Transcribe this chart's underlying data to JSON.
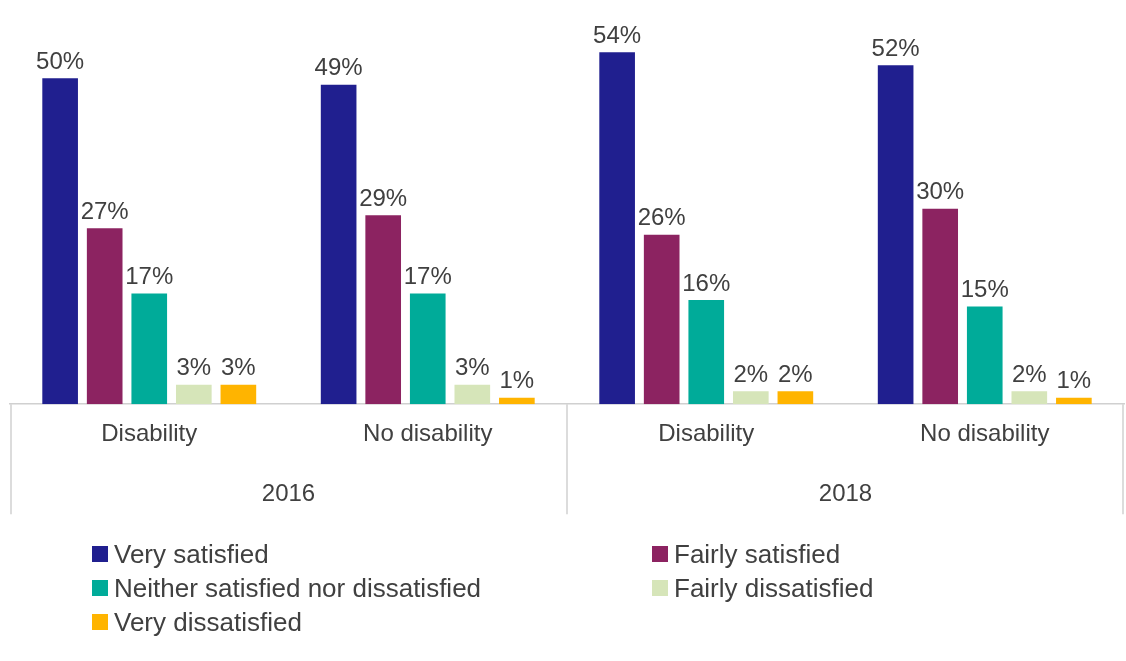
{
  "chart_data": {
    "type": "bar",
    "categories": [
      "Disability",
      "No disability",
      "Disability",
      "No disability"
    ],
    "annotations": [
      "2016",
      "2018"
    ],
    "series": [
      {
        "name": "Very satisfied",
        "color": "#201f8f",
        "values": [
          50,
          49,
          54,
          52
        ],
        "value_labels": [
          "50%",
          "49%",
          "54%",
          "52%"
        ]
      },
      {
        "name": "Fairly satisfied",
        "color": "#8c2361",
        "values": [
          27,
          29,
          26,
          30
        ],
        "value_labels": [
          "27%",
          "29%",
          "26%",
          "30%"
        ]
      },
      {
        "name": "Neither satisfied nor dissatisfied",
        "color": "#00ab99",
        "values": [
          17,
          17,
          16,
          15
        ],
        "value_labels": [
          "17%",
          "17%",
          "16%",
          "15%"
        ]
      },
      {
        "name": "Fairly dissatisfied",
        "color": "#d6e5b9",
        "values": [
          3,
          3,
          2,
          2
        ],
        "value_labels": [
          "3%",
          "3%",
          "2%",
          "2%"
        ]
      },
      {
        "name": "Very dissatisfied",
        "color": "#ffb400",
        "values": [
          3,
          1,
          2,
          1
        ],
        "value_labels": [
          "3%",
          "1%",
          "2%",
          "1%"
        ]
      }
    ],
    "legend": "bottom"
  }
}
